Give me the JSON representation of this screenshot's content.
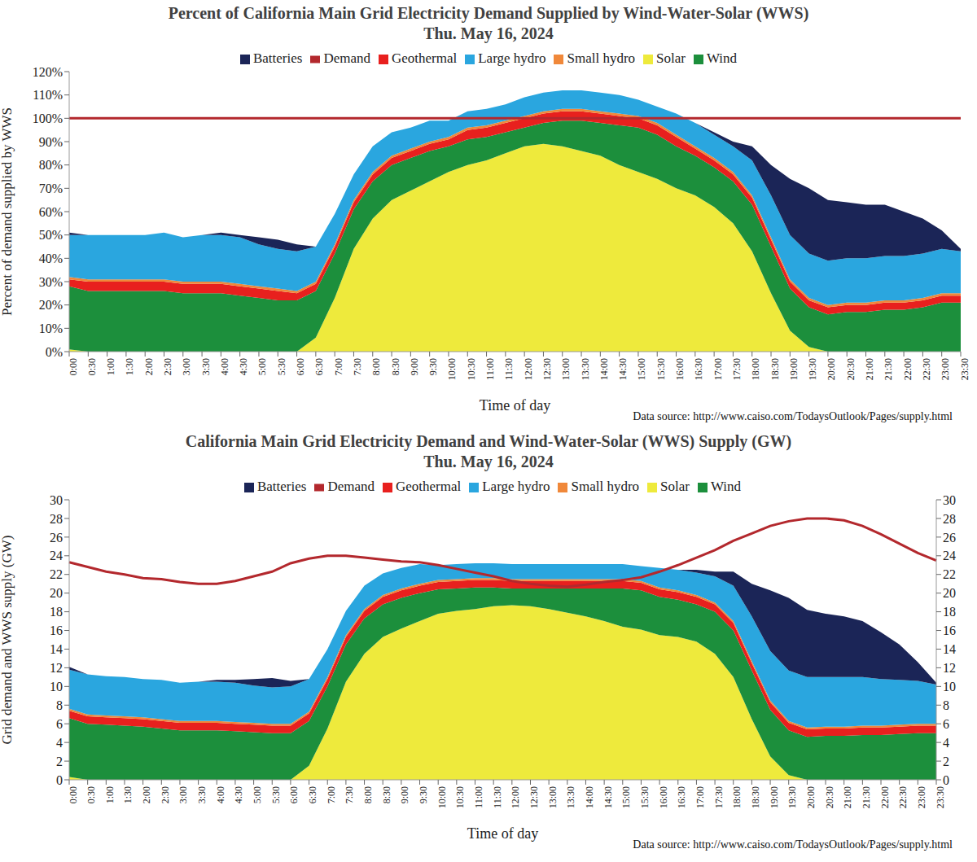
{
  "chart_data": [
    {
      "type": "area",
      "title": "Percent of California Main Grid Electricity Demand Supplied by Wind-Water-Solar (WWS)",
      "subtitle": "Thu. May 16, 2024",
      "x_label": "Time of day",
      "y_label": "Percent of demand supplied by WWS",
      "annotation": "Data source: http://www.caiso.com/TodaysOutlook/Pages/supply.html",
      "stacked": true,
      "grid": false,
      "legend": "top",
      "categories": [
        "0:00",
        "0:30",
        "1:00",
        "1:30",
        "2:00",
        "2:30",
        "3:00",
        "3:30",
        "4:00",
        "4:30",
        "5:00",
        "5:30",
        "6:00",
        "6:30",
        "7:00",
        "7:30",
        "8:00",
        "8:30",
        "9:00",
        "9:30",
        "10:00",
        "10:30",
        "11:00",
        "11:30",
        "12:00",
        "12:30",
        "13:00",
        "13:30",
        "14:00",
        "14:30",
        "15:00",
        "15:30",
        "16:00",
        "16:30",
        "17:00",
        "17:30",
        "18:00",
        "18:30",
        "19:00",
        "19:30",
        "20:00",
        "20:30",
        "21:00",
        "21:30",
        "22:00",
        "22:30",
        "23:00",
        "23:30"
      ],
      "ylim": [
        0,
        120
      ],
      "yticks": [
        {
          "value": 0,
          "label": "0%"
        },
        {
          "value": 10,
          "label": "10%"
        },
        {
          "value": 20,
          "label": "20%"
        },
        {
          "value": 30,
          "label": "30%"
        },
        {
          "value": 40,
          "label": "40%"
        },
        {
          "value": 50,
          "label": "50%"
        },
        {
          "value": 60,
          "label": "60%"
        },
        {
          "value": 70,
          "label": "70%"
        },
        {
          "value": 80,
          "label": "80%"
        },
        {
          "value": 90,
          "label": "90%"
        },
        {
          "value": 100,
          "label": "100%"
        },
        {
          "value": 110,
          "label": "110%"
        },
        {
          "value": 120,
          "label": "120%"
        }
      ],
      "series": [
        {
          "name": "Solar",
          "type": "area",
          "color": "#eeea3c",
          "values": [
            1,
            0,
            0,
            0,
            0,
            0,
            0,
            0,
            0,
            0,
            0,
            0,
            0,
            6,
            23,
            44,
            57,
            65,
            69,
            73,
            77,
            80,
            82,
            85,
            88,
            89,
            88,
            86,
            84,
            80,
            77,
            74,
            70,
            67,
            62,
            55,
            43,
            25,
            9,
            2,
            0,
            0,
            0,
            0,
            0,
            0,
            0,
            0
          ]
        },
        {
          "name": "Wind",
          "type": "area",
          "color": "#1c8f3c",
          "values": [
            27,
            26,
            26,
            26,
            26,
            26,
            25,
            25,
            25,
            24,
            23,
            22,
            22,
            20,
            19,
            17,
            16,
            15,
            14,
            13,
            11,
            11,
            10,
            9,
            8,
            9,
            11,
            13,
            14,
            17,
            19,
            19,
            18,
            17,
            17,
            18,
            20,
            20,
            18,
            17,
            16,
            17,
            17,
            18,
            18,
            19,
            21,
            21
          ]
        },
        {
          "name": "Geothermal",
          "type": "area",
          "color": "#e8201e",
          "values": [
            3,
            4,
            4,
            4,
            4,
            4,
            4,
            4,
            4,
            4,
            4,
            4,
            3,
            3,
            3,
            3,
            3,
            3,
            3,
            3,
            3,
            4,
            4,
            4,
            4,
            4,
            4,
            4,
            4,
            4,
            4,
            4,
            4,
            3,
            3,
            3,
            3,
            3,
            3,
            3,
            3,
            3,
            3,
            3,
            3,
            3,
            3,
            3
          ]
        },
        {
          "name": "Small hydro",
          "type": "area",
          "color": "#f0883a",
          "values": [
            1,
            1,
            1,
            1,
            1,
            1,
            1,
            1,
            1,
            1,
            1,
            1,
            1,
            1,
            1,
            1,
            1,
            1,
            1,
            1,
            1,
            1,
            1,
            1,
            1,
            1,
            1,
            1,
            1,
            1,
            1,
            1,
            1,
            1,
            1,
            1,
            1,
            1,
            1,
            1,
            1,
            1,
            1,
            1,
            1,
            1,
            1,
            1
          ]
        },
        {
          "name": "Large hydro",
          "type": "area",
          "color": "#2aa6df",
          "values": [
            18,
            19,
            19,
            19,
            19,
            20,
            19,
            20,
            20,
            20,
            18,
            17,
            17,
            15,
            13,
            11,
            11,
            10,
            9,
            9,
            7,
            7,
            7,
            7,
            8,
            8,
            8,
            8,
            8,
            8,
            7,
            7,
            9,
            10,
            10,
            11,
            15,
            18,
            19,
            19,
            19,
            19,
            19,
            19,
            19,
            19,
            19,
            18
          ]
        },
        {
          "name": "Batteries",
          "type": "area",
          "color": "#1b2557",
          "values": [
            1,
            0,
            0,
            0,
            0,
            0,
            0,
            0,
            1,
            1,
            3,
            4,
            3,
            0,
            0,
            0,
            0,
            0,
            0,
            0,
            0,
            0,
            0,
            0,
            0,
            0,
            0,
            0,
            0,
            0,
            0,
            0,
            0,
            0,
            1,
            2,
            6,
            13,
            24,
            28,
            26,
            24,
            23,
            22,
            19,
            15,
            8,
            1
          ]
        },
        {
          "name": "Demand",
          "type": "line",
          "color": "#b3282d",
          "values": [
            100,
            100,
            100,
            100,
            100,
            100,
            100,
            100,
            100,
            100,
            100,
            100,
            100,
            100,
            100,
            100,
            100,
            100,
            100,
            100,
            100,
            100,
            100,
            100,
            100,
            100,
            100,
            100,
            100,
            100,
            100,
            100,
            100,
            100,
            100,
            100,
            100,
            100,
            100,
            100,
            100,
            100,
            100,
            100,
            100,
            100,
            100,
            100
          ]
        }
      ]
    },
    {
      "type": "area",
      "title": "California Main Grid Electricity Demand and Wind-Water-Solar (WWS) Supply (GW)",
      "subtitle": "Thu. May 16, 2024",
      "x_label": "Time of day",
      "y_label": "Grid demand and WWS supply (GW)",
      "annotation": "Data source: http://www.caiso.com/TodaysOutlook/Pages/supply.html",
      "stacked": true,
      "grid": false,
      "legend": "top",
      "categories": [
        "0:00",
        "0:30",
        "1:00",
        "1:30",
        "2:00",
        "2:30",
        "3:00",
        "3:30",
        "4:00",
        "4:30",
        "5:00",
        "5:30",
        "6:00",
        "6:30",
        "7:00",
        "7:30",
        "8:00",
        "8:30",
        "9:00",
        "9:30",
        "10:00",
        "10:30",
        "11:00",
        "11:30",
        "12:00",
        "12:30",
        "13:00",
        "13:30",
        "14:00",
        "14:30",
        "15:00",
        "15:30",
        "16:00",
        "16:30",
        "17:00",
        "17:30",
        "18:00",
        "18:30",
        "19:00",
        "19:30",
        "20:00",
        "20:30",
        "21:00",
        "21:30",
        "22:00",
        "22:30",
        "23:00",
        "23:30"
      ],
      "ylim": [
        0,
        30
      ],
      "yticks": [
        0,
        2,
        4,
        6,
        8,
        10,
        12,
        14,
        16,
        18,
        20,
        22,
        24,
        26,
        28,
        30
      ],
      "y2lim": [
        0,
        30
      ],
      "y2ticks": [
        0,
        2,
        4,
        6,
        8,
        10,
        12,
        14,
        16,
        18,
        20,
        22,
        24,
        26,
        28,
        30
      ],
      "series": [
        {
          "name": "Solar",
          "type": "area",
          "color": "#eeea3c",
          "values": [
            0.3,
            0,
            0,
            0,
            0,
            0,
            0,
            0,
            0,
            0,
            0,
            0,
            0,
            1.5,
            5.5,
            10.5,
            13.5,
            15.3,
            16.2,
            17.0,
            17.8,
            18.1,
            18.3,
            18.6,
            18.7,
            18.6,
            18.3,
            17.9,
            17.5,
            17.0,
            16.4,
            16.1,
            15.5,
            15.3,
            14.8,
            13.5,
            11.0,
            6.5,
            2.5,
            0.5,
            0,
            0,
            0,
            0,
            0,
            0,
            0,
            0
          ]
        },
        {
          "name": "Wind",
          "type": "area",
          "color": "#1c8f3c",
          "values": [
            6.3,
            6.0,
            5.9,
            5.8,
            5.7,
            5.5,
            5.3,
            5.3,
            5.3,
            5.2,
            5.1,
            5.0,
            5.0,
            4.8,
            4.5,
            4.0,
            3.8,
            3.5,
            3.3,
            3.0,
            2.6,
            2.4,
            2.3,
            2.0,
            1.8,
            1.9,
            2.2,
            2.6,
            3.0,
            3.5,
            4.1,
            4.2,
            4.1,
            4.0,
            4.0,
            4.5,
            5.0,
            5.2,
            5.0,
            4.8,
            4.6,
            4.7,
            4.7,
            4.8,
            4.8,
            4.9,
            5.0,
            5.0
          ]
        },
        {
          "name": "Geothermal",
          "type": "area",
          "color": "#e8201e",
          "values": [
            0.8,
            0.8,
            0.8,
            0.8,
            0.8,
            0.8,
            0.8,
            0.8,
            0.8,
            0.8,
            0.8,
            0.8,
            0.8,
            0.8,
            0.8,
            0.8,
            0.8,
            0.8,
            0.8,
            0.8,
            0.8,
            0.8,
            0.8,
            0.8,
            0.8,
            0.8,
            0.8,
            0.8,
            0.8,
            0.8,
            0.8,
            0.8,
            0.8,
            0.8,
            0.8,
            0.8,
            0.8,
            0.8,
            0.8,
            0.8,
            0.8,
            0.8,
            0.8,
            0.8,
            0.8,
            0.8,
            0.8,
            0.8
          ]
        },
        {
          "name": "Small hydro",
          "type": "area",
          "color": "#f0883a",
          "values": [
            0.2,
            0.2,
            0.2,
            0.2,
            0.2,
            0.2,
            0.2,
            0.2,
            0.2,
            0.2,
            0.2,
            0.2,
            0.2,
            0.2,
            0.2,
            0.2,
            0.2,
            0.2,
            0.2,
            0.2,
            0.2,
            0.2,
            0.2,
            0.2,
            0.2,
            0.2,
            0.2,
            0.2,
            0.2,
            0.2,
            0.2,
            0.2,
            0.2,
            0.2,
            0.2,
            0.2,
            0.2,
            0.2,
            0.2,
            0.2,
            0.2,
            0.2,
            0.2,
            0.2,
            0.2,
            0.2,
            0.2,
            0.2
          ]
        },
        {
          "name": "Large hydro",
          "type": "area",
          "color": "#2aa6df",
          "values": [
            4.2,
            4.3,
            4.2,
            4.2,
            4.1,
            4.2,
            4.1,
            4.2,
            4.2,
            4.2,
            4.0,
            3.9,
            4.0,
            3.5,
            3.0,
            2.6,
            2.5,
            2.3,
            2.2,
            2.1,
            1.6,
            1.6,
            1.6,
            1.6,
            1.6,
            1.6,
            1.6,
            1.6,
            1.6,
            1.6,
            1.6,
            1.6,
            2.1,
            2.2,
            2.4,
            2.8,
            3.8,
            4.8,
            5.3,
            5.4,
            5.4,
            5.3,
            5.3,
            5.2,
            5.0,
            4.8,
            4.6,
            4.2
          ]
        },
        {
          "name": "Batteries",
          "type": "area",
          "color": "#1b2557",
          "values": [
            0.3,
            0,
            0,
            0,
            0,
            0,
            0,
            0,
            0.2,
            0.3,
            0.7,
            1.0,
            0.6,
            0,
            0,
            0,
            0,
            0,
            0,
            0,
            0,
            0,
            0,
            0,
            0,
            0,
            0,
            0,
            0,
            0,
            0,
            0,
            0,
            0,
            0.3,
            0.5,
            1.5,
            3.5,
            6.5,
            7.8,
            7.2,
            6.8,
            6.5,
            6.0,
            5.0,
            3.8,
            2.0,
            0.2
          ]
        },
        {
          "name": "Demand",
          "type": "line",
          "axis": "y2",
          "color": "#b3282d",
          "values": [
            23.3,
            22.8,
            22.3,
            22.0,
            21.6,
            21.5,
            21.2,
            21.0,
            21.0,
            21.3,
            21.8,
            22.3,
            23.2,
            23.7,
            24.0,
            24.0,
            23.8,
            23.6,
            23.4,
            23.3,
            23.0,
            22.6,
            22.2,
            21.8,
            21.3,
            21.0,
            20.8,
            20.7,
            20.9,
            21.2,
            21.4,
            21.7,
            22.3,
            23.0,
            23.8,
            24.6,
            25.6,
            26.4,
            27.2,
            27.7,
            28.0,
            28.0,
            27.8,
            27.2,
            26.3,
            25.3,
            24.3,
            23.5
          ]
        }
      ]
    }
  ]
}
